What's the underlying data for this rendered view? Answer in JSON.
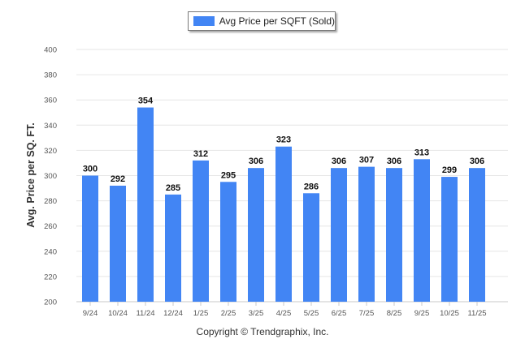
{
  "legend": {
    "label": "Avg Price per SQFT (Sold)"
  },
  "footer": {
    "copyright": "Copyright © Trendgraphix, Inc."
  },
  "colors": {
    "bar": "#4285f4",
    "grid": "#e6e6e6",
    "axis": "#c8c8c8"
  },
  "chart_data": {
    "type": "bar",
    "title": "",
    "xlabel": "",
    "ylabel": "Avg. Price per SQ. FT.",
    "ylim": [
      200,
      400
    ],
    "yticks": [
      200,
      220,
      240,
      260,
      280,
      300,
      320,
      340,
      360,
      380,
      400
    ],
    "grid": true,
    "legend_position": "top-center",
    "categories": [
      "9/24",
      "10/24",
      "11/24",
      "12/24",
      "1/25",
      "2/25",
      "3/25",
      "4/25",
      "5/25",
      "6/25",
      "7/25",
      "8/25",
      "9/25",
      "10/25",
      "11/25"
    ],
    "series": [
      {
        "name": "Avg Price per SQFT (Sold)",
        "values": [
          300,
          292,
          354,
          285,
          312,
          295,
          306,
          323,
          286,
          306,
          307,
          306,
          313,
          299,
          306
        ]
      }
    ]
  }
}
